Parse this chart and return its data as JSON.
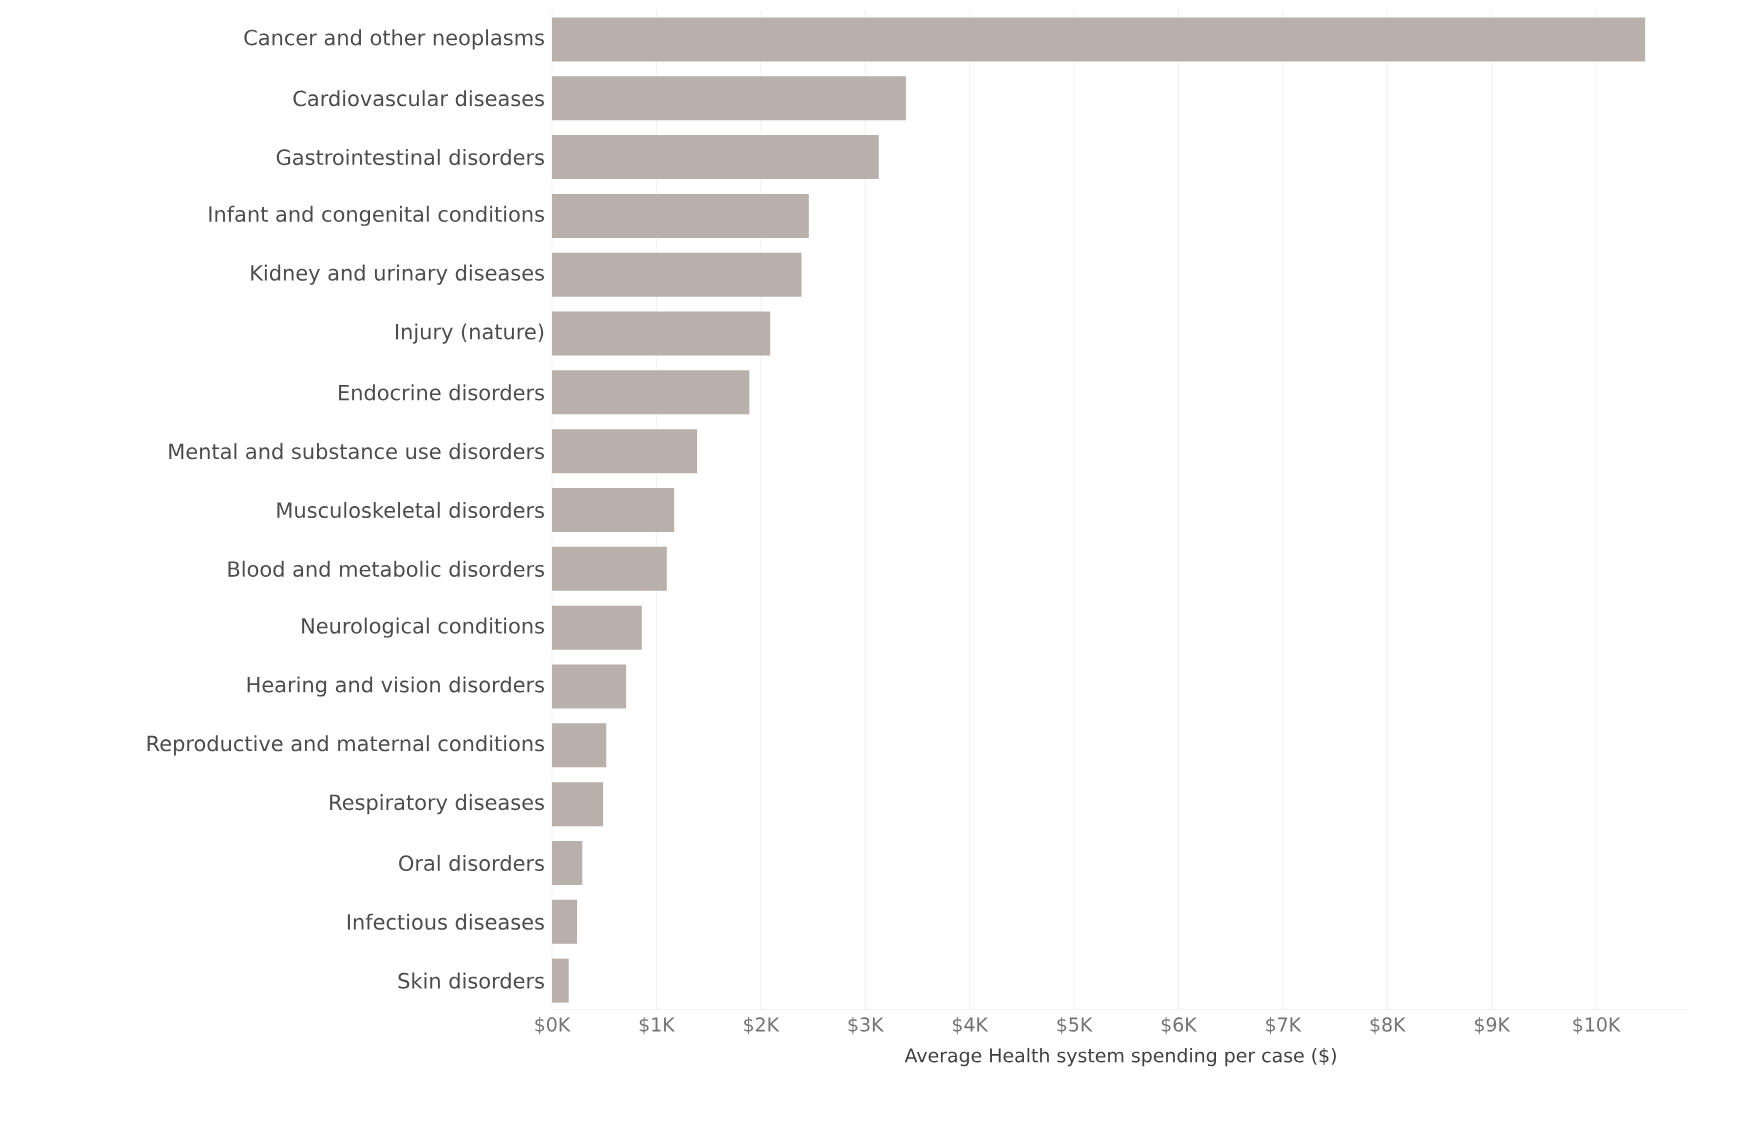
{
  "chart_data": {
    "type": "bar",
    "orientation": "horizontal",
    "xlabel": "Average Health system spending per case ($)",
    "categories": [
      "Cancer and other neoplasms",
      "Cardiovascular diseases",
      "Gastrointestinal disorders",
      "Infant and congenital conditions",
      "Kidney and urinary diseases",
      "Injury (nature)",
      "Endocrine disorders",
      "Mental and substance use disorders",
      "Musculoskeletal disorders",
      "Blood and metabolic disorders",
      "Neurological conditions",
      "Hearing and vision disorders",
      "Reproductive and maternal conditions",
      "Respiratory diseases",
      "Oral disorders",
      "Infectious diseases",
      "Skin disorders"
    ],
    "values": [
      10470,
      3390,
      3130,
      2460,
      2390,
      2090,
      1890,
      1390,
      1170,
      1100,
      860,
      710,
      520,
      490,
      290,
      240,
      160
    ],
    "color": "#b9b0ab",
    "xlim": [
      0,
      10900
    ],
    "xticks": [
      {
        "value": 0,
        "label": "$0K"
      },
      {
        "value": 1000,
        "label": "$1K"
      },
      {
        "value": 2000,
        "label": "$2K"
      },
      {
        "value": 3000,
        "label": "$3K"
      },
      {
        "value": 4000,
        "label": "$4K"
      },
      {
        "value": 5000,
        "label": "$5K"
      },
      {
        "value": 6000,
        "label": "$6K"
      },
      {
        "value": 7000,
        "label": "$7K"
      },
      {
        "value": 8000,
        "label": "$8K"
      },
      {
        "value": 9000,
        "label": "$9K"
      },
      {
        "value": 10000,
        "label": "$10K"
      }
    ],
    "grid": "x"
  }
}
